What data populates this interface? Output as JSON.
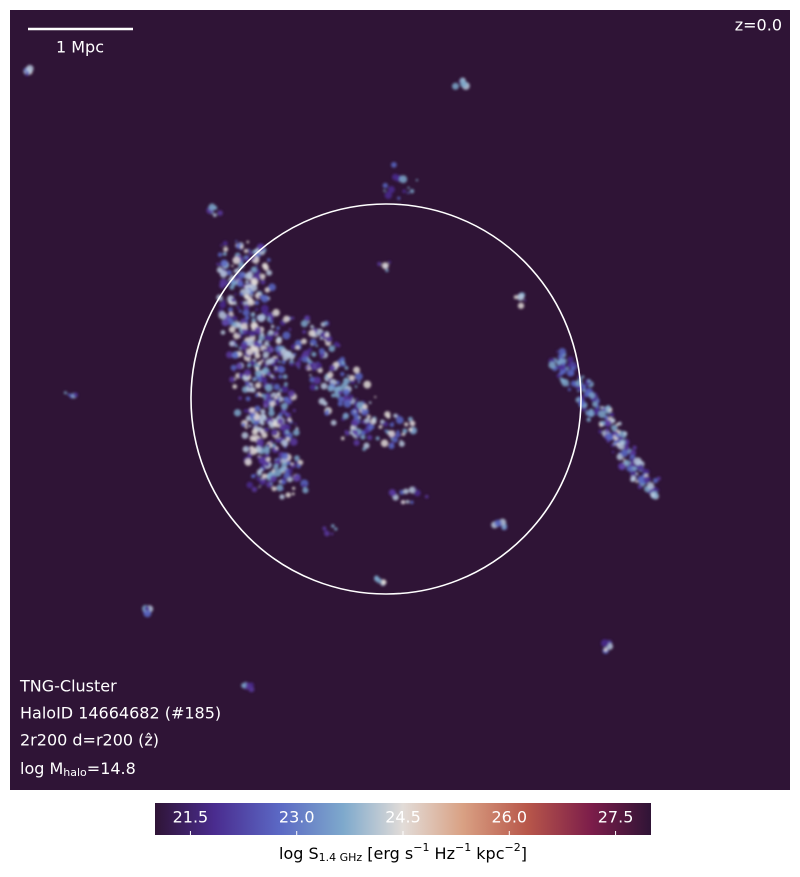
{
  "map": {
    "scale_bar": "1 Mpc",
    "redshift": "z=0.0",
    "info": {
      "simulation": "TNG-Cluster",
      "halo_id": "HaloID 14664682 (#185)",
      "projection": "2r200 d=r200 (ẑ)",
      "mass": {
        "prefix": "log M",
        "subscript": "halo",
        "suffix": "=14.8"
      }
    }
  },
  "colorbar": {
    "lim": [
      21,
      28
    ],
    "ticks": [
      21.5,
      {
        "value": 23,
        "label": "23.0"
      },
      24.5,
      {
        "value": 26,
        "label": "26.0"
      },
      27.5
    ],
    "label": {
      "parts": [
        "log S",
        "1.4 GHz",
        " [erg s",
        "−1",
        " Hz",
        "−1",
        " kpc",
        "−2",
        "]"
      ]
    }
  }
}
